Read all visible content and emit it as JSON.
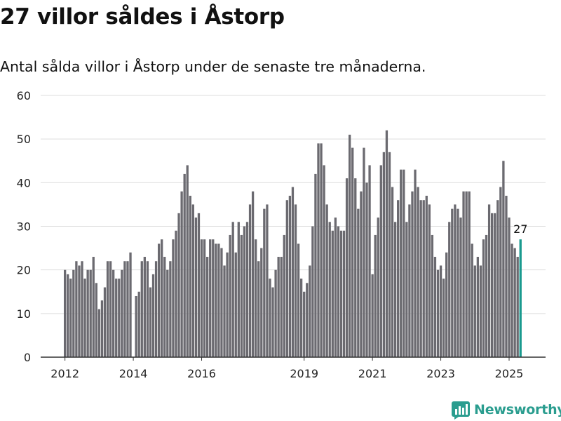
{
  "title": "27 villor såldes i Åstorp",
  "subtitle": "Antal sålda villor i Åstorp under de senaste tre månaderna.",
  "brand": {
    "name": "Newsworthy",
    "color": "#2a9d8f",
    "icon": "bar-chart-logo-icon"
  },
  "colors": {
    "bar": "#6b6a70",
    "highlight": "#1a9a8f",
    "grid": "#dddddd",
    "axis": "#333333"
  },
  "chart_data": {
    "type": "bar",
    "title": "27 villor såldes i Åstorp",
    "subtitle": "Antal sålda villor i Åstorp under de senaste tre månaderna.",
    "xlabel": "",
    "ylabel": "",
    "ylim": [
      0,
      60
    ],
    "y_ticks": [
      0,
      10,
      20,
      30,
      40,
      50,
      60
    ],
    "x_ticks": [
      "2012",
      "2014",
      "2016",
      "2019",
      "2021",
      "2023",
      "2025"
    ],
    "x_tick_index": [
      0,
      24,
      48,
      84,
      108,
      132,
      156
    ],
    "grid": true,
    "highlight_label": "27",
    "values": [
      20,
      19,
      18,
      20,
      22,
      21,
      22,
      18,
      20,
      20,
      23,
      17,
      11,
      13,
      16,
      22,
      22,
      20,
      18,
      18,
      20,
      22,
      22,
      24,
      0,
      14,
      15,
      22,
      23,
      22,
      16,
      19,
      22,
      26,
      27,
      23,
      20,
      22,
      27,
      29,
      33,
      38,
      42,
      44,
      37,
      35,
      32,
      33,
      27,
      27,
      23,
      27,
      27,
      26,
      26,
      25,
      21,
      24,
      28,
      31,
      24,
      31,
      28,
      30,
      31,
      35,
      38,
      27,
      22,
      25,
      34,
      35,
      18,
      16,
      20,
      23,
      23,
      28,
      36,
      37,
      39,
      35,
      26,
      18,
      15,
      17,
      21,
      30,
      42,
      49,
      49,
      44,
      35,
      31,
      29,
      32,
      30,
      29,
      29,
      41,
      51,
      48,
      41,
      34,
      38,
      48,
      40,
      44,
      19,
      28,
      32,
      44,
      47,
      52,
      47,
      39,
      31,
      36,
      43,
      43,
      31,
      35,
      38,
      43,
      39,
      36,
      36,
      37,
      35,
      28,
      23,
      20,
      21,
      18,
      24,
      31,
      34,
      35,
      34,
      32,
      38,
      38,
      38,
      26,
      21,
      23,
      21,
      27,
      28,
      35,
      33,
      33,
      36,
      39,
      45,
      37,
      32,
      26,
      25,
      23,
      27
    ]
  }
}
